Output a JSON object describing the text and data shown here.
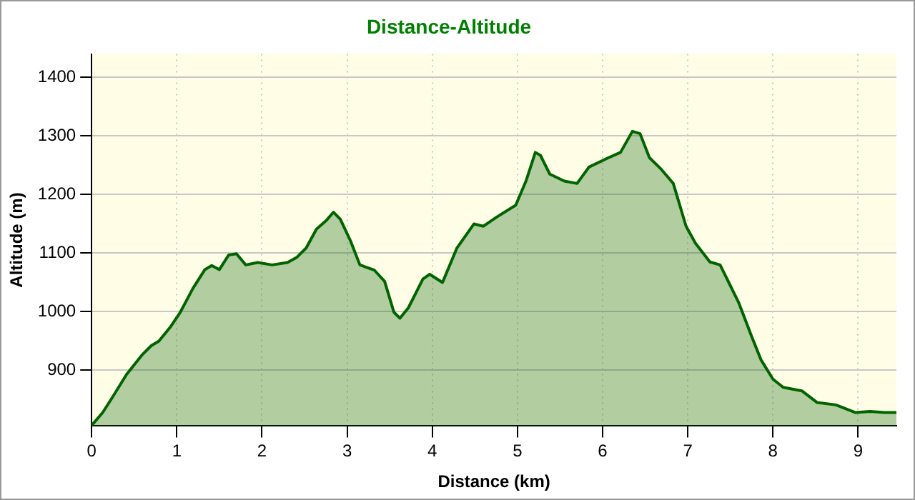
{
  "chart_data": {
    "type": "area",
    "title": "Distance-Altitude",
    "xlabel": "Distance (km)",
    "ylabel": "Altitude (m)",
    "x": [
      0,
      0.13,
      0.24,
      0.41,
      0.59,
      0.7,
      0.79,
      0.93,
      1.04,
      1.19,
      1.33,
      1.41,
      1.5,
      1.61,
      1.7,
      1.81,
      1.95,
      2.12,
      2.3,
      2.41,
      2.52,
      2.64,
      2.75,
      2.84,
      2.92,
      3.04,
      3.15,
      3.32,
      3.44,
      3.55,
      3.62,
      3.72,
      3.89,
      3.97,
      4.12,
      4.29,
      4.49,
      4.6,
      4.76,
      4.98,
      5.1,
      5.21,
      5.27,
      5.38,
      5.55,
      5.7,
      5.84,
      6.07,
      6.21,
      6.35,
      6.44,
      6.55,
      6.69,
      6.83,
      6.98,
      7.09,
      7.26,
      7.38,
      7.6,
      7.75,
      7.86,
      8,
      8.12,
      8.34,
      8.52,
      8.74,
      8.97,
      9.14,
      9.31,
      9.45
    ],
    "series": [
      {
        "color": "#006400",
        "values": [
          806,
          828,
          853,
          893,
          926,
          942,
          950,
          975,
          999,
          1040,
          1072,
          1079,
          1072,
          1097,
          1099,
          1080,
          1084,
          1080,
          1084,
          1093,
          1109,
          1141,
          1155,
          1170,
          1158,
          1121,
          1080,
          1071,
          1052,
          999,
          989,
          1007,
          1056,
          1064,
          1050,
          1109,
          1150,
          1146,
          1162,
          1182,
          1223,
          1272,
          1267,
          1235,
          1223,
          1219,
          1247,
          1263,
          1272,
          1308,
          1304,
          1263,
          1243,
          1219,
          1146,
          1117,
          1085,
          1080,
          1015,
          958,
          918,
          885,
          871,
          865,
          845,
          841,
          828,
          830,
          828,
          828
        ]
      }
    ],
    "xlim": [
      0,
      9.45
    ],
    "xticks": [
      0,
      1,
      2,
      3,
      4,
      5,
      6,
      7,
      8,
      9
    ],
    "ylim": [
      805,
      1440
    ],
    "yticks": [
      900,
      1000,
      1100,
      1200,
      1300,
      1400
    ],
    "grid": true,
    "legend": false,
    "marker": "none",
    "line_style": "solid"
  }
}
